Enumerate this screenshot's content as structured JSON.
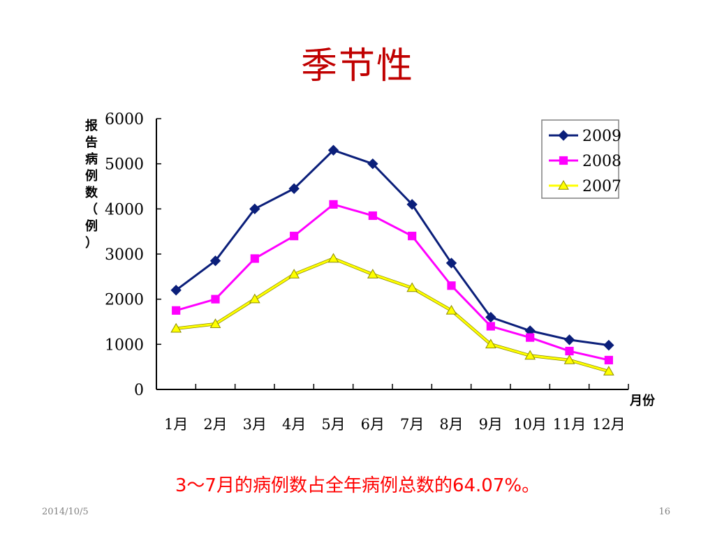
{
  "slide": {
    "title": "季节性",
    "caption": "3～7月的病例数占全年病例总数的64.07%。",
    "date": "2014/10/5",
    "page_number": "16"
  },
  "chart_data": {
    "type": "line",
    "xlabel": "月份",
    "ylabel": "报告病例数（例）",
    "categories": [
      "1月",
      "2月",
      "3月",
      "4月",
      "5月",
      "6月",
      "7月",
      "8月",
      "9月",
      "10月",
      "11月",
      "12月"
    ],
    "ylim": [
      0,
      6000
    ],
    "yticks": [
      0,
      1000,
      2000,
      3000,
      4000,
      5000,
      6000
    ],
    "grid": false,
    "legend_position": "top-right",
    "series": [
      {
        "name": "2009",
        "color": "#0b1f7a",
        "marker": "diamond",
        "values": [
          2200,
          2850,
          4000,
          4450,
          5300,
          5000,
          4100,
          2800,
          1600,
          1300,
          1100,
          980
        ]
      },
      {
        "name": "2008",
        "color": "#ff00ff",
        "marker": "square",
        "values": [
          1750,
          2000,
          2900,
          3400,
          4100,
          3850,
          3400,
          2300,
          1400,
          1150,
          850,
          650
        ]
      },
      {
        "name": "2007",
        "color": "#ffff00",
        "marker": "triangle",
        "values": [
          1350,
          1450,
          2000,
          2550,
          2900,
          2550,
          2250,
          1750,
          1000,
          750,
          650,
          400
        ]
      }
    ]
  }
}
